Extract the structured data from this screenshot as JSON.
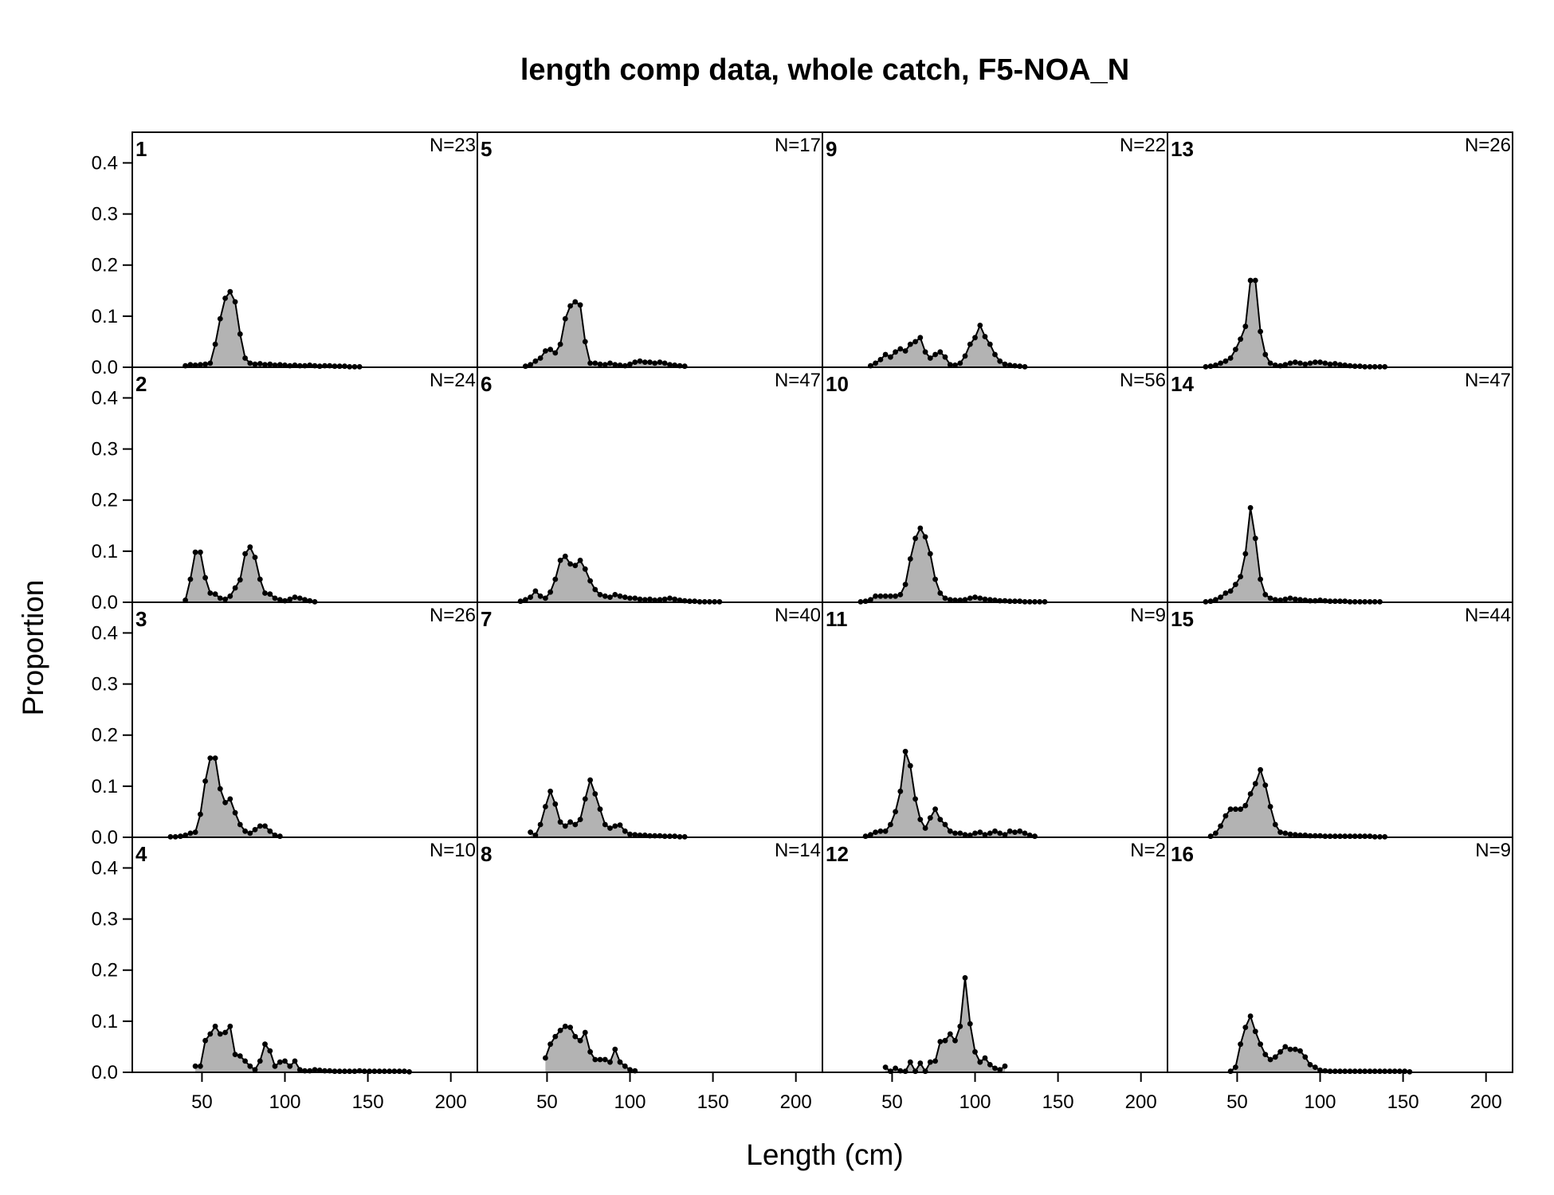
{
  "chart_data": {
    "type": "area",
    "title": "length comp data, whole catch, F5-NOA_N",
    "xlabel": "Length (cm)",
    "ylabel": "Proportion",
    "xlim": [
      8,
      216
    ],
    "ylim": [
      0,
      0.46
    ],
    "x_ticks": [
      50,
      100,
      150,
      200
    ],
    "y_ticks": [
      0.0,
      0.1,
      0.2,
      0.3,
      0.4
    ],
    "x_tick_labels": [
      "50",
      "100",
      "150",
      "200"
    ],
    "y_tick_labels": [
      "0.0",
      "0.1",
      "0.2",
      "0.3",
      "0.4"
    ],
    "grid": false,
    "layout": {
      "rows": 4,
      "cols": 4,
      "order": "column-major"
    },
    "fill_color": "#b3b3b3",
    "line_color": "#000000",
    "panels": [
      {
        "label": "1",
        "n_label": "N=23",
        "x": [
          40,
          43,
          46,
          49,
          52,
          55,
          58,
          61,
          64,
          67,
          70,
          73,
          76,
          79,
          82,
          85,
          88,
          91,
          94,
          97,
          100,
          103,
          106,
          109,
          112,
          115,
          118,
          121,
          124,
          127,
          130,
          133,
          136,
          139,
          142,
          145
        ],
        "y": [
          0.003,
          0.005,
          0.004,
          0.005,
          0.006,
          0.008,
          0.045,
          0.095,
          0.135,
          0.148,
          0.128,
          0.065,
          0.018,
          0.008,
          0.006,
          0.007,
          0.005,
          0.006,
          0.004,
          0.005,
          0.004,
          0.003,
          0.004,
          0.003,
          0.003,
          0.004,
          0.003,
          0.002,
          0.003,
          0.003,
          0.002,
          0.002,
          0.002,
          0.001,
          0.001,
          0.001
        ]
      },
      {
        "label": "2",
        "n_label": "N=24",
        "x": [
          40,
          43,
          46,
          49,
          52,
          55,
          58,
          61,
          64,
          67,
          70,
          73,
          76,
          79,
          82,
          85,
          88,
          91,
          94,
          97,
          100,
          103,
          106,
          109,
          112,
          115,
          118
        ],
        "y": [
          0.004,
          0.045,
          0.098,
          0.098,
          0.048,
          0.018,
          0.016,
          0.008,
          0.006,
          0.012,
          0.028,
          0.044,
          0.095,
          0.108,
          0.088,
          0.045,
          0.018,
          0.016,
          0.008,
          0.005,
          0.003,
          0.006,
          0.01,
          0.008,
          0.005,
          0.003,
          0.001
        ]
      },
      {
        "label": "3",
        "n_label": "N=26",
        "x": [
          31,
          34,
          37,
          40,
          43,
          46,
          49,
          52,
          55,
          58,
          61,
          64,
          67,
          70,
          73,
          76,
          79,
          82,
          85,
          88,
          91,
          94,
          97
        ],
        "y": [
          0.001,
          0.001,
          0.002,
          0.004,
          0.008,
          0.01,
          0.045,
          0.11,
          0.155,
          0.155,
          0.095,
          0.068,
          0.075,
          0.048,
          0.025,
          0.012,
          0.008,
          0.015,
          0.022,
          0.022,
          0.012,
          0.004,
          0.002
        ]
      },
      {
        "label": "4",
        "n_label": "N=10",
        "x": [
          46,
          49,
          52,
          55,
          58,
          61,
          64,
          67,
          70,
          73,
          76,
          79,
          82,
          85,
          88,
          91,
          94,
          97,
          100,
          103,
          106,
          109,
          112,
          115,
          118,
          121,
          124,
          127,
          130,
          133,
          136,
          139,
          142,
          145,
          148,
          151,
          154,
          157,
          160,
          163,
          166,
          169,
          172,
          175
        ],
        "y": [
          0.012,
          0.012,
          0.062,
          0.075,
          0.09,
          0.075,
          0.078,
          0.09,
          0.035,
          0.032,
          0.022,
          0.012,
          0.005,
          0.022,
          0.055,
          0.042,
          0.012,
          0.02,
          0.022,
          0.012,
          0.022,
          0.005,
          0.003,
          0.003,
          0.005,
          0.004,
          0.003,
          0.003,
          0.002,
          0.002,
          0.002,
          0.002,
          0.002,
          0.003,
          0.002,
          0.002,
          0.002,
          0.002,
          0.002,
          0.002,
          0.002,
          0.002,
          0.002,
          0.001
        ]
      },
      {
        "label": "5",
        "n_label": "N=17",
        "x": [
          37,
          40,
          43,
          46,
          49,
          52,
          55,
          58,
          61,
          64,
          67,
          70,
          73,
          76,
          79,
          82,
          85,
          88,
          91,
          94,
          97,
          100,
          103,
          106,
          109,
          112,
          115,
          118,
          121,
          124,
          127,
          130,
          133
        ],
        "y": [
          0.002,
          0.005,
          0.012,
          0.018,
          0.032,
          0.035,
          0.028,
          0.045,
          0.095,
          0.12,
          0.128,
          0.122,
          0.05,
          0.008,
          0.008,
          0.006,
          0.005,
          0.008,
          0.005,
          0.004,
          0.003,
          0.006,
          0.01,
          0.012,
          0.01,
          0.01,
          0.008,
          0.01,
          0.008,
          0.005,
          0.004,
          0.003,
          0.002
        ]
      },
      {
        "label": "6",
        "n_label": "N=47",
        "x": [
          34,
          37,
          40,
          43,
          46,
          49,
          52,
          55,
          58,
          61,
          64,
          67,
          70,
          73,
          76,
          79,
          82,
          85,
          88,
          91,
          94,
          97,
          100,
          103,
          106,
          109,
          112,
          115,
          118,
          121,
          124,
          127,
          130,
          133,
          136,
          139,
          142,
          145,
          148,
          151,
          154
        ],
        "y": [
          0.002,
          0.005,
          0.01,
          0.022,
          0.012,
          0.008,
          0.02,
          0.045,
          0.082,
          0.09,
          0.075,
          0.072,
          0.082,
          0.065,
          0.042,
          0.025,
          0.015,
          0.012,
          0.01,
          0.015,
          0.012,
          0.01,
          0.008,
          0.008,
          0.006,
          0.005,
          0.006,
          0.004,
          0.005,
          0.006,
          0.008,
          0.006,
          0.004,
          0.003,
          0.002,
          0.002,
          0.001,
          0.001,
          0.001,
          0.001,
          0.001
        ]
      },
      {
        "label": "7",
        "n_label": "N=40",
        "x": [
          40,
          43,
          46,
          49,
          52,
          55,
          58,
          61,
          64,
          67,
          70,
          73,
          76,
          79,
          82,
          85,
          88,
          91,
          94,
          97,
          100,
          103,
          106,
          109,
          112,
          115,
          118,
          121,
          124,
          127,
          130,
          133
        ],
        "y": [
          0.01,
          0.004,
          0.025,
          0.06,
          0.09,
          0.065,
          0.03,
          0.022,
          0.03,
          0.025,
          0.035,
          0.075,
          0.112,
          0.085,
          0.055,
          0.025,
          0.018,
          0.022,
          0.024,
          0.012,
          0.006,
          0.005,
          0.004,
          0.004,
          0.003,
          0.003,
          0.003,
          0.002,
          0.002,
          0.002,
          0.001,
          0.001
        ]
      },
      {
        "label": "8",
        "n_label": "N=14",
        "x": [
          49,
          52,
          55,
          58,
          61,
          64,
          67,
          70,
          73,
          76,
          79,
          82,
          85,
          88,
          91,
          94,
          97,
          100,
          103
        ],
        "y": [
          0.028,
          0.055,
          0.07,
          0.082,
          0.09,
          0.088,
          0.07,
          0.062,
          0.078,
          0.04,
          0.025,
          0.025,
          0.025,
          0.02,
          0.045,
          0.02,
          0.012,
          0.005,
          0.003
        ]
      },
      {
        "label": "9",
        "n_label": "N=22",
        "x": [
          37,
          40,
          43,
          46,
          49,
          52,
          55,
          58,
          61,
          64,
          67,
          70,
          73,
          76,
          79,
          82,
          85,
          88,
          91,
          94,
          97,
          100,
          103,
          106,
          109,
          112,
          115,
          118,
          121,
          124,
          127,
          130
        ],
        "y": [
          0.003,
          0.008,
          0.015,
          0.025,
          0.02,
          0.03,
          0.036,
          0.032,
          0.045,
          0.05,
          0.058,
          0.03,
          0.018,
          0.025,
          0.03,
          0.02,
          0.005,
          0.004,
          0.008,
          0.022,
          0.045,
          0.058,
          0.082,
          0.06,
          0.045,
          0.025,
          0.012,
          0.006,
          0.004,
          0.003,
          0.002,
          0.001
        ]
      },
      {
        "label": "10",
        "n_label": "N=56",
        "x": [
          31,
          34,
          37,
          40,
          43,
          46,
          49,
          52,
          55,
          58,
          61,
          64,
          67,
          70,
          73,
          76,
          79,
          82,
          85,
          88,
          91,
          94,
          97,
          100,
          103,
          106,
          109,
          112,
          115,
          118,
          121,
          124,
          127,
          130,
          133,
          136,
          139,
          142
        ],
        "y": [
          0.001,
          0.002,
          0.005,
          0.012,
          0.012,
          0.012,
          0.012,
          0.012,
          0.015,
          0.035,
          0.085,
          0.125,
          0.145,
          0.128,
          0.095,
          0.045,
          0.018,
          0.008,
          0.005,
          0.004,
          0.004,
          0.005,
          0.008,
          0.01,
          0.008,
          0.006,
          0.005,
          0.004,
          0.003,
          0.003,
          0.002,
          0.002,
          0.002,
          0.001,
          0.001,
          0.001,
          0.001,
          0.001
        ]
      },
      {
        "label": "11",
        "n_label": "N=9",
        "x": [
          34,
          37,
          40,
          43,
          46,
          49,
          52,
          55,
          58,
          61,
          64,
          67,
          70,
          73,
          76,
          79,
          82,
          85,
          88,
          91,
          94,
          97,
          100,
          103,
          106,
          109,
          112,
          115,
          118,
          121,
          124,
          127,
          130,
          133,
          136
        ],
        "y": [
          0.002,
          0.005,
          0.01,
          0.012,
          0.012,
          0.025,
          0.05,
          0.09,
          0.168,
          0.14,
          0.075,
          0.035,
          0.018,
          0.038,
          0.055,
          0.035,
          0.025,
          0.012,
          0.008,
          0.008,
          0.005,
          0.004,
          0.008,
          0.01,
          0.005,
          0.008,
          0.012,
          0.008,
          0.005,
          0.012,
          0.01,
          0.012,
          0.008,
          0.004,
          0.002
        ]
      },
      {
        "label": "12",
        "n_label": "N=2",
        "x": [
          46,
          49,
          52,
          55,
          58,
          61,
          64,
          67,
          70,
          73,
          76,
          79,
          82,
          85,
          88,
          91,
          94,
          97,
          100,
          103,
          106,
          109,
          112,
          115,
          118
        ],
        "y": [
          0.01,
          0.002,
          0.008,
          0.003,
          0.002,
          0.02,
          0.002,
          0.018,
          0.002,
          0.02,
          0.022,
          0.06,
          0.062,
          0.075,
          0.062,
          0.09,
          0.185,
          0.095,
          0.04,
          0.02,
          0.028,
          0.015,
          0.008,
          0.005,
          0.012
        ]
      },
      {
        "label": "13",
        "n_label": "N=26",
        "x": [
          31,
          34,
          37,
          40,
          43,
          46,
          49,
          52,
          55,
          58,
          61,
          64,
          67,
          70,
          73,
          76,
          79,
          82,
          85,
          88,
          91,
          94,
          97,
          100,
          103,
          106,
          109,
          112,
          115,
          118,
          121,
          124,
          127,
          130,
          133,
          136,
          139
        ],
        "y": [
          0.001,
          0.002,
          0.004,
          0.008,
          0.012,
          0.018,
          0.035,
          0.055,
          0.08,
          0.17,
          0.17,
          0.07,
          0.025,
          0.008,
          0.004,
          0.003,
          0.005,
          0.008,
          0.01,
          0.008,
          0.006,
          0.008,
          0.01,
          0.01,
          0.008,
          0.006,
          0.007,
          0.005,
          0.004,
          0.003,
          0.002,
          0.002,
          0.001,
          0.001,
          0.001,
          0.001,
          0.001
        ]
      },
      {
        "label": "14",
        "n_label": "N=47",
        "x": [
          31,
          34,
          37,
          40,
          43,
          46,
          49,
          52,
          55,
          58,
          61,
          64,
          67,
          70,
          73,
          76,
          79,
          82,
          85,
          88,
          91,
          94,
          97,
          100,
          103,
          106,
          109,
          112,
          115,
          118,
          121,
          124,
          127,
          130,
          133,
          136
        ],
        "y": [
          0.001,
          0.002,
          0.005,
          0.01,
          0.018,
          0.022,
          0.035,
          0.05,
          0.095,
          0.185,
          0.125,
          0.045,
          0.015,
          0.008,
          0.005,
          0.004,
          0.006,
          0.008,
          0.006,
          0.005,
          0.004,
          0.003,
          0.003,
          0.004,
          0.003,
          0.002,
          0.002,
          0.002,
          0.002,
          0.001,
          0.001,
          0.001,
          0.001,
          0.001,
          0.001,
          0.001
        ]
      },
      {
        "label": "15",
        "n_label": "N=44",
        "x": [
          34,
          37,
          40,
          43,
          46,
          49,
          52,
          55,
          58,
          61,
          64,
          67,
          70,
          73,
          76,
          79,
          82,
          85,
          88,
          91,
          94,
          97,
          100,
          103,
          106,
          109,
          112,
          115,
          118,
          121,
          124,
          127,
          130,
          133,
          136,
          139
        ],
        "y": [
          0.002,
          0.008,
          0.022,
          0.042,
          0.055,
          0.055,
          0.055,
          0.062,
          0.085,
          0.105,
          0.132,
          0.102,
          0.06,
          0.025,
          0.01,
          0.008,
          0.006,
          0.005,
          0.004,
          0.004,
          0.003,
          0.003,
          0.003,
          0.002,
          0.002,
          0.002,
          0.002,
          0.002,
          0.002,
          0.002,
          0.002,
          0.002,
          0.002,
          0.001,
          0.001,
          0.001
        ]
      },
      {
        "label": "16",
        "n_label": "N=9",
        "x": [
          46,
          49,
          52,
          55,
          58,
          61,
          64,
          67,
          70,
          73,
          76,
          79,
          82,
          85,
          88,
          91,
          94,
          97,
          100,
          103,
          106,
          109,
          112,
          115,
          118,
          121,
          124,
          127,
          130,
          133,
          136,
          139,
          142,
          145,
          148,
          151,
          154
        ],
        "y": [
          0.002,
          0.01,
          0.055,
          0.088,
          0.11,
          0.08,
          0.055,
          0.035,
          0.025,
          0.03,
          0.04,
          0.05,
          0.045,
          0.045,
          0.042,
          0.03,
          0.015,
          0.01,
          0.004,
          0.003,
          0.002,
          0.002,
          0.002,
          0.002,
          0.002,
          0.002,
          0.002,
          0.002,
          0.002,
          0.002,
          0.002,
          0.002,
          0.002,
          0.002,
          0.002,
          0.002,
          0.001
        ]
      }
    ]
  }
}
